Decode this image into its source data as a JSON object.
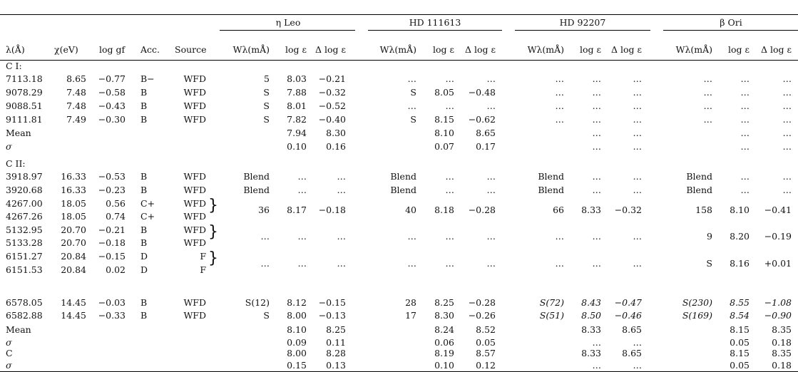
{
  "groups": [
    {
      "name": "η Leo"
    },
    {
      "name": "HD 111613"
    },
    {
      "name": "HD 92207"
    },
    {
      "name": "β Ori"
    }
  ],
  "columns": [
    "λ(Å)",
    "χ(eV)",
    "log gf",
    "Acc.",
    "Source",
    "Wλ(mÅ)",
    "log ε",
    "Δ log ε"
  ],
  "sections": [
    {
      "label": "C I:",
      "rows": [
        {
          "lam": "7113.18",
          "chi": "8.65",
          "loggf": "−0.77",
          "acc": "B−",
          "src": "WFD",
          "vals": [
            "5",
            "8.03",
            "−0.21",
            "…",
            "…",
            "…",
            "…",
            "…",
            "…",
            "…",
            "…",
            "…"
          ]
        },
        {
          "lam": "9078.29",
          "chi": "7.48",
          "loggf": "−0.58",
          "acc": "B",
          "src": "WFD",
          "vals": [
            "S",
            "7.88",
            "−0.32",
            "S",
            "8.05",
            "−0.48",
            "…",
            "…",
            "…",
            "…",
            "…",
            "…"
          ]
        },
        {
          "lam": "9088.51",
          "chi": "7.48",
          "loggf": "−0.43",
          "acc": "B",
          "src": "WFD",
          "vals": [
            "S",
            "8.01",
            "−0.52",
            "…",
            "…",
            "…",
            "…",
            "…",
            "…",
            "…",
            "…",
            "…"
          ]
        },
        {
          "lam": "9111.81",
          "chi": "7.49",
          "loggf": "−0.30",
          "acc": "B",
          "src": "WFD",
          "vals": [
            "S",
            "7.82",
            "−0.40",
            "S",
            "8.15",
            "−0.62",
            "…",
            "…",
            "…",
            "…",
            "…",
            "…"
          ]
        }
      ],
      "mean": {
        "label": "Mean",
        "vals": [
          "7.94",
          "8.30",
          "8.10",
          "8.65",
          "…",
          "…",
          "…",
          "…"
        ]
      },
      "sigma": {
        "label": "σ",
        "vals": [
          "0.10",
          "0.16",
          "0.07",
          "0.17",
          "…",
          "…",
          "…",
          "…"
        ]
      }
    },
    {
      "label": "C II:",
      "rows": [
        {
          "lam": "3918.97",
          "chi": "16.33",
          "loggf": "−0.53",
          "acc": "B",
          "src": "WFD",
          "vals": [
            "Blend",
            "…",
            "…",
            "Blend",
            "…",
            "…",
            "Blend",
            "…",
            "…",
            "Blend",
            "…",
            "…"
          ]
        },
        {
          "lam": "3920.68",
          "chi": "16.33",
          "loggf": "−0.23",
          "acc": "B",
          "src": "WFD",
          "vals": [
            "Blend",
            "…",
            "…",
            "Blend",
            "…",
            "…",
            "Blend",
            "…",
            "…",
            "Blend",
            "…",
            "…"
          ]
        },
        {
          "pair": [
            {
              "lam": "4267.00",
              "chi": "18.05",
              "loggf": "0.56",
              "acc": "C+",
              "src": "WFD"
            },
            {
              "lam": "4267.26",
              "chi": "18.05",
              "loggf": "0.74",
              "acc": "C+",
              "src": "WFD"
            }
          ],
          "vals": [
            "36",
            "8.17",
            "−0.18",
            "40",
            "8.18",
            "−0.28",
            "66",
            "8.33",
            "−0.32",
            "158",
            "8.10",
            "−0.41"
          ]
        },
        {
          "pair": [
            {
              "lam": "5132.95",
              "chi": "20.70",
              "loggf": "−0.21",
              "acc": "B",
              "src": "WFD"
            },
            {
              "lam": "5133.28",
              "chi": "20.70",
              "loggf": "−0.18",
              "acc": "B",
              "src": "WFD"
            }
          ],
          "vals": [
            "…",
            "…",
            "…",
            "…",
            "…",
            "…",
            "…",
            "…",
            "…",
            "9",
            "8.20",
            "−0.19"
          ]
        },
        {
          "pair": [
            {
              "lam": "6151.27",
              "chi": "20.84",
              "loggf": "−0.15",
              "acc": "D",
              "src": "F"
            },
            {
              "lam": "6151.53",
              "chi": "20.84",
              "loggf": "0.02",
              "acc": "D",
              "src": "F"
            }
          ],
          "vals": [
            "…",
            "…",
            "…",
            "…",
            "…",
            "…",
            "…",
            "…",
            "…",
            "S",
            "8.16",
            "+0.01"
          ]
        },
        {
          "lam": "6578.05",
          "chi": "14.45",
          "loggf": "−0.03",
          "acc": "B",
          "src": "WFD",
          "vals": [
            "S(12)",
            "8.12",
            "−0.15",
            "28",
            "8.25",
            "−0.28",
            "S(72)",
            "8.43",
            "−0.47",
            "S(230)",
            "8.55",
            "−1.08"
          ],
          "italic_groups": [
            2,
            3
          ]
        },
        {
          "lam": "6582.88",
          "chi": "14.45",
          "loggf": "−0.33",
          "acc": "B",
          "src": "WFD",
          "vals": [
            "S",
            "8.00",
            "−0.13",
            "17",
            "8.30",
            "−0.26",
            "S(51)",
            "8.50",
            "−0.46",
            "S(169)",
            "8.54",
            "−0.90"
          ],
          "italic_groups": [
            2,
            3
          ]
        }
      ],
      "mean": {
        "label": "Mean",
        "vals": [
          "8.10",
          "8.25",
          "8.24",
          "8.52",
          "8.33",
          "8.65",
          "8.15",
          "8.35"
        ]
      },
      "sigma": {
        "label": "σ",
        "vals": [
          "0.09",
          "0.11",
          "0.06",
          "0.05",
          "…",
          "…",
          "0.05",
          "0.18"
        ]
      }
    }
  ],
  "totals": {
    "mean": {
      "label": "C",
      "vals": [
        "8.00",
        "8.28",
        "8.19",
        "8.57",
        "8.33",
        "8.65",
        "8.15",
        "8.35"
      ]
    },
    "sigma": {
      "label": "σ",
      "vals": [
        "0.15",
        "0.13",
        "0.10",
        "0.12",
        "…",
        "…",
        "0.05",
        "0.18"
      ]
    }
  }
}
